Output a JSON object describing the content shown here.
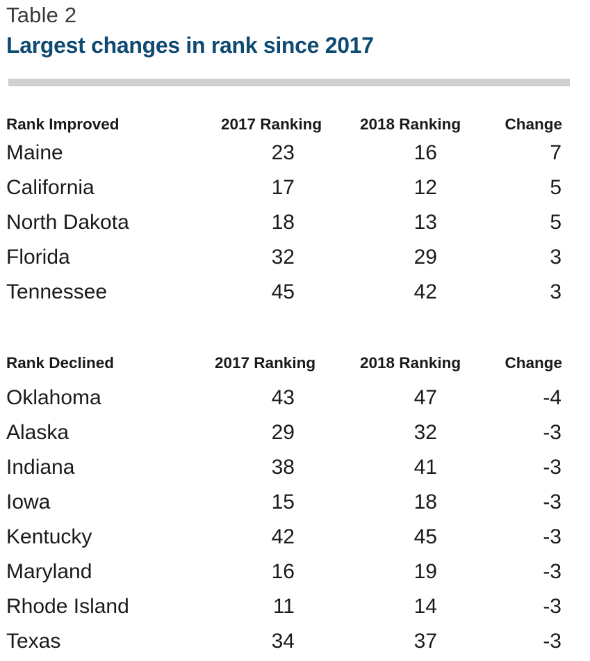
{
  "header": {
    "label": "Table 2",
    "title": "Largest changes in rank since 2017"
  },
  "improved": {
    "headers": {
      "category": "Rank Improved",
      "col_2017": "2017 Ranking",
      "col_2018": "2018 Ranking",
      "col_change": "Change"
    },
    "rows": [
      {
        "state": "Maine",
        "r2017": "23",
        "r2018": "16",
        "change": "7"
      },
      {
        "state": "California",
        "r2017": "17",
        "r2018": "12",
        "change": "5"
      },
      {
        "state": "North Dakota",
        "r2017": "18",
        "r2018": "13",
        "change": "5"
      },
      {
        "state": "Florida",
        "r2017": "32",
        "r2018": "29",
        "change": "3"
      },
      {
        "state": "Tennessee",
        "r2017": "45",
        "r2018": "42",
        "change": "3"
      }
    ]
  },
  "declined": {
    "headers": {
      "category": "Rank Declined",
      "col_2017": "2017 Ranking",
      "col_2018": "2018 Ranking",
      "col_change": "Change"
    },
    "rows": [
      {
        "state": "Oklahoma",
        "r2017": "43",
        "r2018": "47",
        "change": "-4"
      },
      {
        "state": "Alaska",
        "r2017": "29",
        "r2018": "32",
        "change": "-3"
      },
      {
        "state": "Indiana",
        "r2017": "38",
        "r2018": "41",
        "change": "-3"
      },
      {
        "state": "Iowa",
        "r2017": "15",
        "r2018": "18",
        "change": "-3"
      },
      {
        "state": "Kentucky",
        "r2017": "42",
        "r2018": "45",
        "change": "-3"
      },
      {
        "state": "Maryland",
        "r2017": "16",
        "r2018": "19",
        "change": "-3"
      },
      {
        "state": "Rhode Island",
        "r2017": "11",
        "r2018": "14",
        "change": "-3"
      },
      {
        "state": "Texas",
        "r2017": "34",
        "r2018": "37",
        "change": "-3"
      }
    ]
  },
  "colors": {
    "title": "#0f4a72",
    "rule": "#cfcfcf",
    "text": "#1a1a1a"
  }
}
